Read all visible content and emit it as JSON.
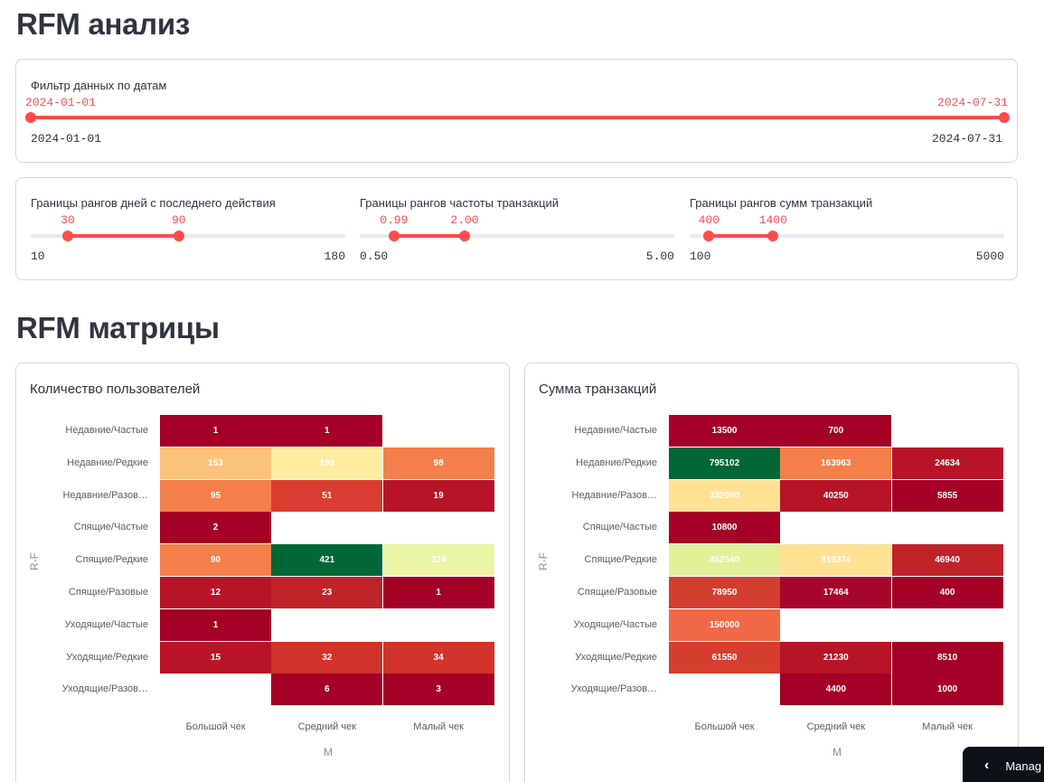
{
  "title": "RFM анализ",
  "date_filter": {
    "label": "Фильтр данных по датам",
    "start": "2024-01-01",
    "end": "2024-07-31",
    "min": "2024-01-01",
    "max": "2024-07-31"
  },
  "rank_sliders": [
    {
      "label": "Границы рангов дней с последнего действия",
      "lo": "30",
      "hi": "90",
      "min": "10",
      "max": "180",
      "lo_value": 30,
      "hi_value": 90,
      "min_value": 10,
      "max_value": 180
    },
    {
      "label": "Границы рангов частоты транзакций",
      "lo": "0.99",
      "hi": "2.00",
      "min": "0.50",
      "max": "5.00",
      "lo_value": 0.99,
      "hi_value": 2.0,
      "min_value": 0.5,
      "max_value": 5.0
    },
    {
      "label": "Границы рангов сумм транзакций",
      "lo": "400",
      "hi": "1400",
      "min": "100",
      "max": "5000",
      "lo_value": 400,
      "hi_value": 1400,
      "min_value": 100,
      "max_value": 5000
    }
  ],
  "matrix_title": "RFM матрицы",
  "chart_data": [
    {
      "type": "heatmap",
      "title": "Количество пользователей",
      "xlabel": "M",
      "ylabel": "R-F",
      "x_categories": [
        "Большой чек",
        "Средний чек",
        "Малый чек"
      ],
      "y_categories": [
        "Недавние/Частые",
        "Недавние/Редкие",
        "Недавние/Разов…",
        "Спящие/Частые",
        "Спящие/Редкие",
        "Спящие/Разовые",
        "Уходящие/Частые",
        "Уходящие/Редкие",
        "Уходящие/Разов…"
      ],
      "values": [
        [
          1,
          1,
          null
        ],
        [
          153,
          195,
          98
        ],
        [
          95,
          51,
          19
        ],
        [
          2,
          null,
          null
        ],
        [
          90,
          421,
          224
        ],
        [
          12,
          23,
          1
        ],
        [
          1,
          null,
          null
        ],
        [
          15,
          32,
          34
        ],
        [
          null,
          6,
          3
        ]
      ],
      "colorscale": "RdYlGn",
      "colors": [
        [
          "#a50026",
          "#a50026",
          null
        ],
        [
          "#fdc279",
          "#feeda1",
          "#f47f4a"
        ],
        [
          "#f47f4a",
          "#da3d2f",
          "#b81428"
        ],
        [
          "#a50026",
          null,
          null
        ],
        [
          "#f47f4a",
          "#006837",
          "#eaf5a6"
        ],
        [
          "#b81428",
          "#c02229",
          "#a50026"
        ],
        [
          "#a50026",
          null,
          null
        ],
        [
          "#b81428",
          "#d1322a",
          "#d1322a"
        ],
        [
          null,
          "#a50026",
          "#a50026"
        ]
      ]
    },
    {
      "type": "heatmap",
      "title": "Сумма транзакций",
      "xlabel": "M",
      "ylabel": "R-F",
      "x_categories": [
        "Большой чек",
        "Средний чек",
        "Малый чек"
      ],
      "y_categories": [
        "Недавние/Частые",
        "Недавние/Редкие",
        "Недавние/Разов…",
        "Спящие/Частые",
        "Спящие/Редкие",
        "Спящие/Разовые",
        "Уходящие/Частые",
        "Уходящие/Редкие",
        "Уходящие/Разов…"
      ],
      "values": [
        [
          13500,
          700,
          null
        ],
        [
          795102,
          163963,
          24634
        ],
        [
          332090,
          40250,
          5855
        ],
        [
          10800,
          null,
          null
        ],
        [
          452540,
          310374,
          46940
        ],
        [
          78950,
          17464,
          400
        ],
        [
          150000,
          null,
          null
        ],
        [
          61550,
          21230,
          8510
        ],
        [
          null,
          4400,
          1000
        ]
      ],
      "colorscale": "RdYlGn",
      "colors": [
        [
          "#a50026",
          "#a50026",
          null
        ],
        [
          "#006837",
          "#f47f4a",
          "#b81428"
        ],
        [
          "#fee193",
          "#b81428",
          "#a50026"
        ],
        [
          "#a50026",
          null,
          null
        ],
        [
          "#e2f09a",
          "#fee193",
          "#c02229"
        ],
        [
          "#d53e2e",
          "#a8052a",
          "#a50026"
        ],
        [
          "#f06845",
          null,
          null
        ],
        [
          "#d53e2e",
          "#b81428",
          "#a50026"
        ],
        [
          null,
          "#a50026",
          "#a50026"
        ]
      ]
    }
  ],
  "manage_button": {
    "label": "Manag",
    "icon": "chevron-left-icon"
  }
}
